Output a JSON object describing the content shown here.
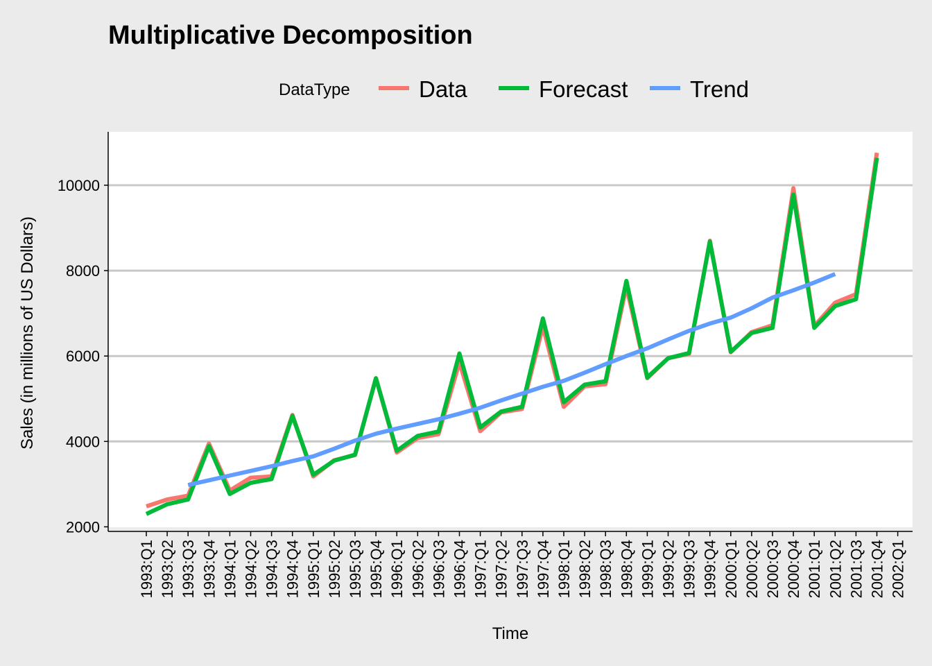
{
  "chart_data": {
    "type": "line",
    "title": "Multiplicative Decomposition",
    "xlabel": "Time",
    "ylabel": "Sales (in millions of US Dollars)",
    "ylim": [
      2000,
      11000
    ],
    "yticks": [
      2000,
      4000,
      6000,
      8000,
      10000
    ],
    "grid": "horizontal",
    "legend": {
      "title": "DataType",
      "position": "top"
    },
    "categories": [
      "1993:Q1",
      "1993:Q2",
      "1993:Q3",
      "1993:Q4",
      "1994:Q1",
      "1994:Q2",
      "1994:Q3",
      "1994:Q4",
      "1995:Q1",
      "1995:Q2",
      "1995:Q3",
      "1995:Q4",
      "1996:Q1",
      "1996:Q2",
      "1996:Q3",
      "1996:Q4",
      "1997:Q1",
      "1997:Q2",
      "1997:Q3",
      "1997:Q4",
      "1998:Q1",
      "1998:Q2",
      "1998:Q3",
      "1998:Q4",
      "1999:Q1",
      "1999:Q2",
      "1999:Q3",
      "1999:Q4",
      "2000:Q1",
      "2000:Q2",
      "2000:Q3",
      "2000:Q4",
      "2001:Q1",
      "2001:Q2",
      "2001:Q3",
      "2001:Q4",
      "2002:Q1"
    ],
    "series": [
      {
        "name": "Data",
        "color": "#f8766d",
        "values": [
          2480,
          2640,
          2730,
          3950,
          2850,
          3150,
          3180,
          4620,
          3180,
          3560,
          3680,
          5480,
          3740,
          4080,
          4170,
          5850,
          4240,
          4680,
          4760,
          6690,
          4810,
          5290,
          5340,
          7630,
          5480,
          5950,
          6050,
          8700,
          6090,
          6560,
          6720,
          9930,
          6700,
          7250,
          7450,
          10760,
          null
        ]
      },
      {
        "name": "Forecast",
        "color": "#00ba38",
        "values": [
          2300,
          2530,
          2640,
          3890,
          2770,
          3030,
          3120,
          4600,
          3220,
          3550,
          3690,
          5480,
          3780,
          4130,
          4230,
          6060,
          4330,
          4700,
          4810,
          6880,
          4920,
          5330,
          5410,
          7760,
          5500,
          5950,
          6070,
          8680,
          6100,
          6540,
          6660,
          9780,
          6660,
          7170,
          7330,
          10640,
          null
        ]
      },
      {
        "name": "Trend",
        "color": "#619cff",
        "values": [
          null,
          null,
          2980,
          3090,
          3200,
          3310,
          3420,
          3540,
          3650,
          3830,
          4020,
          4180,
          4300,
          4410,
          4520,
          4650,
          4790,
          4960,
          5120,
          5280,
          5420,
          5610,
          5810,
          6000,
          6180,
          6390,
          6590,
          6760,
          6900,
          7120,
          7370,
          7540,
          7720,
          7920,
          null,
          null,
          null
        ]
      }
    ]
  }
}
